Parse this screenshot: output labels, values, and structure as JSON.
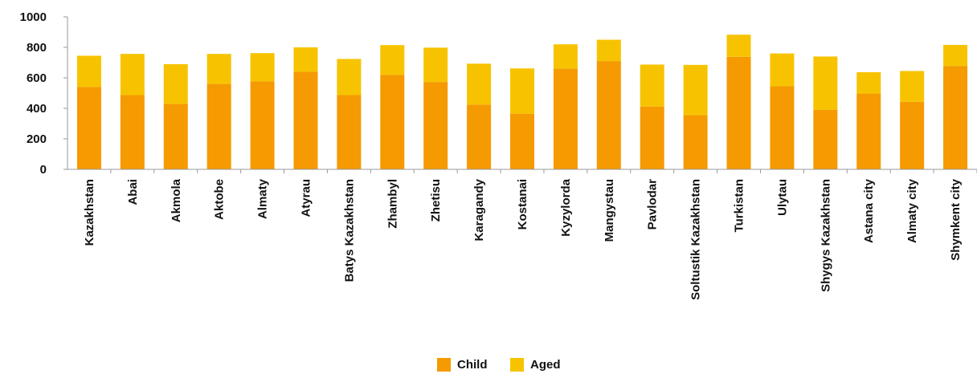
{
  "chart_data": {
    "type": "bar",
    "stacked": true,
    "categories": [
      "Kazakhstan",
      "Abai",
      "Akmola",
      "Aktobe",
      "Almaty",
      "Atyrau",
      "Batys Kazakhstan",
      "Zhambyl",
      "Zhetisu",
      "Karagandy",
      "Kostanai",
      "Kyzylorda",
      "Mangystau",
      "Pavlodar",
      "Soltustik Kazakhstan",
      "Turkistan",
      "Ulytau",
      "Shygys Kazakhstan",
      "Astana city",
      "Almaty city",
      "Shymkent city"
    ],
    "series": [
      {
        "name": "Child",
        "color": "#f59a00",
        "values": [
          540,
          487,
          430,
          560,
          577,
          640,
          487,
          620,
          573,
          425,
          365,
          660,
          710,
          412,
          355,
          738,
          545,
          390,
          497,
          443,
          678
        ]
      },
      {
        "name": "Aged",
        "color": "#f7c300",
        "values": [
          205,
          270,
          260,
          197,
          185,
          160,
          237,
          195,
          225,
          268,
          297,
          160,
          140,
          275,
          330,
          145,
          215,
          350,
          140,
          202,
          138
        ]
      }
    ],
    "yticks": [
      "0",
      "200",
      "400",
      "600",
      "800",
      "1000"
    ],
    "ylim": [
      0,
      1000
    ],
    "grid": false,
    "legend": "bottom-center",
    "title": "",
    "xlabel": "",
    "ylabel": ""
  }
}
